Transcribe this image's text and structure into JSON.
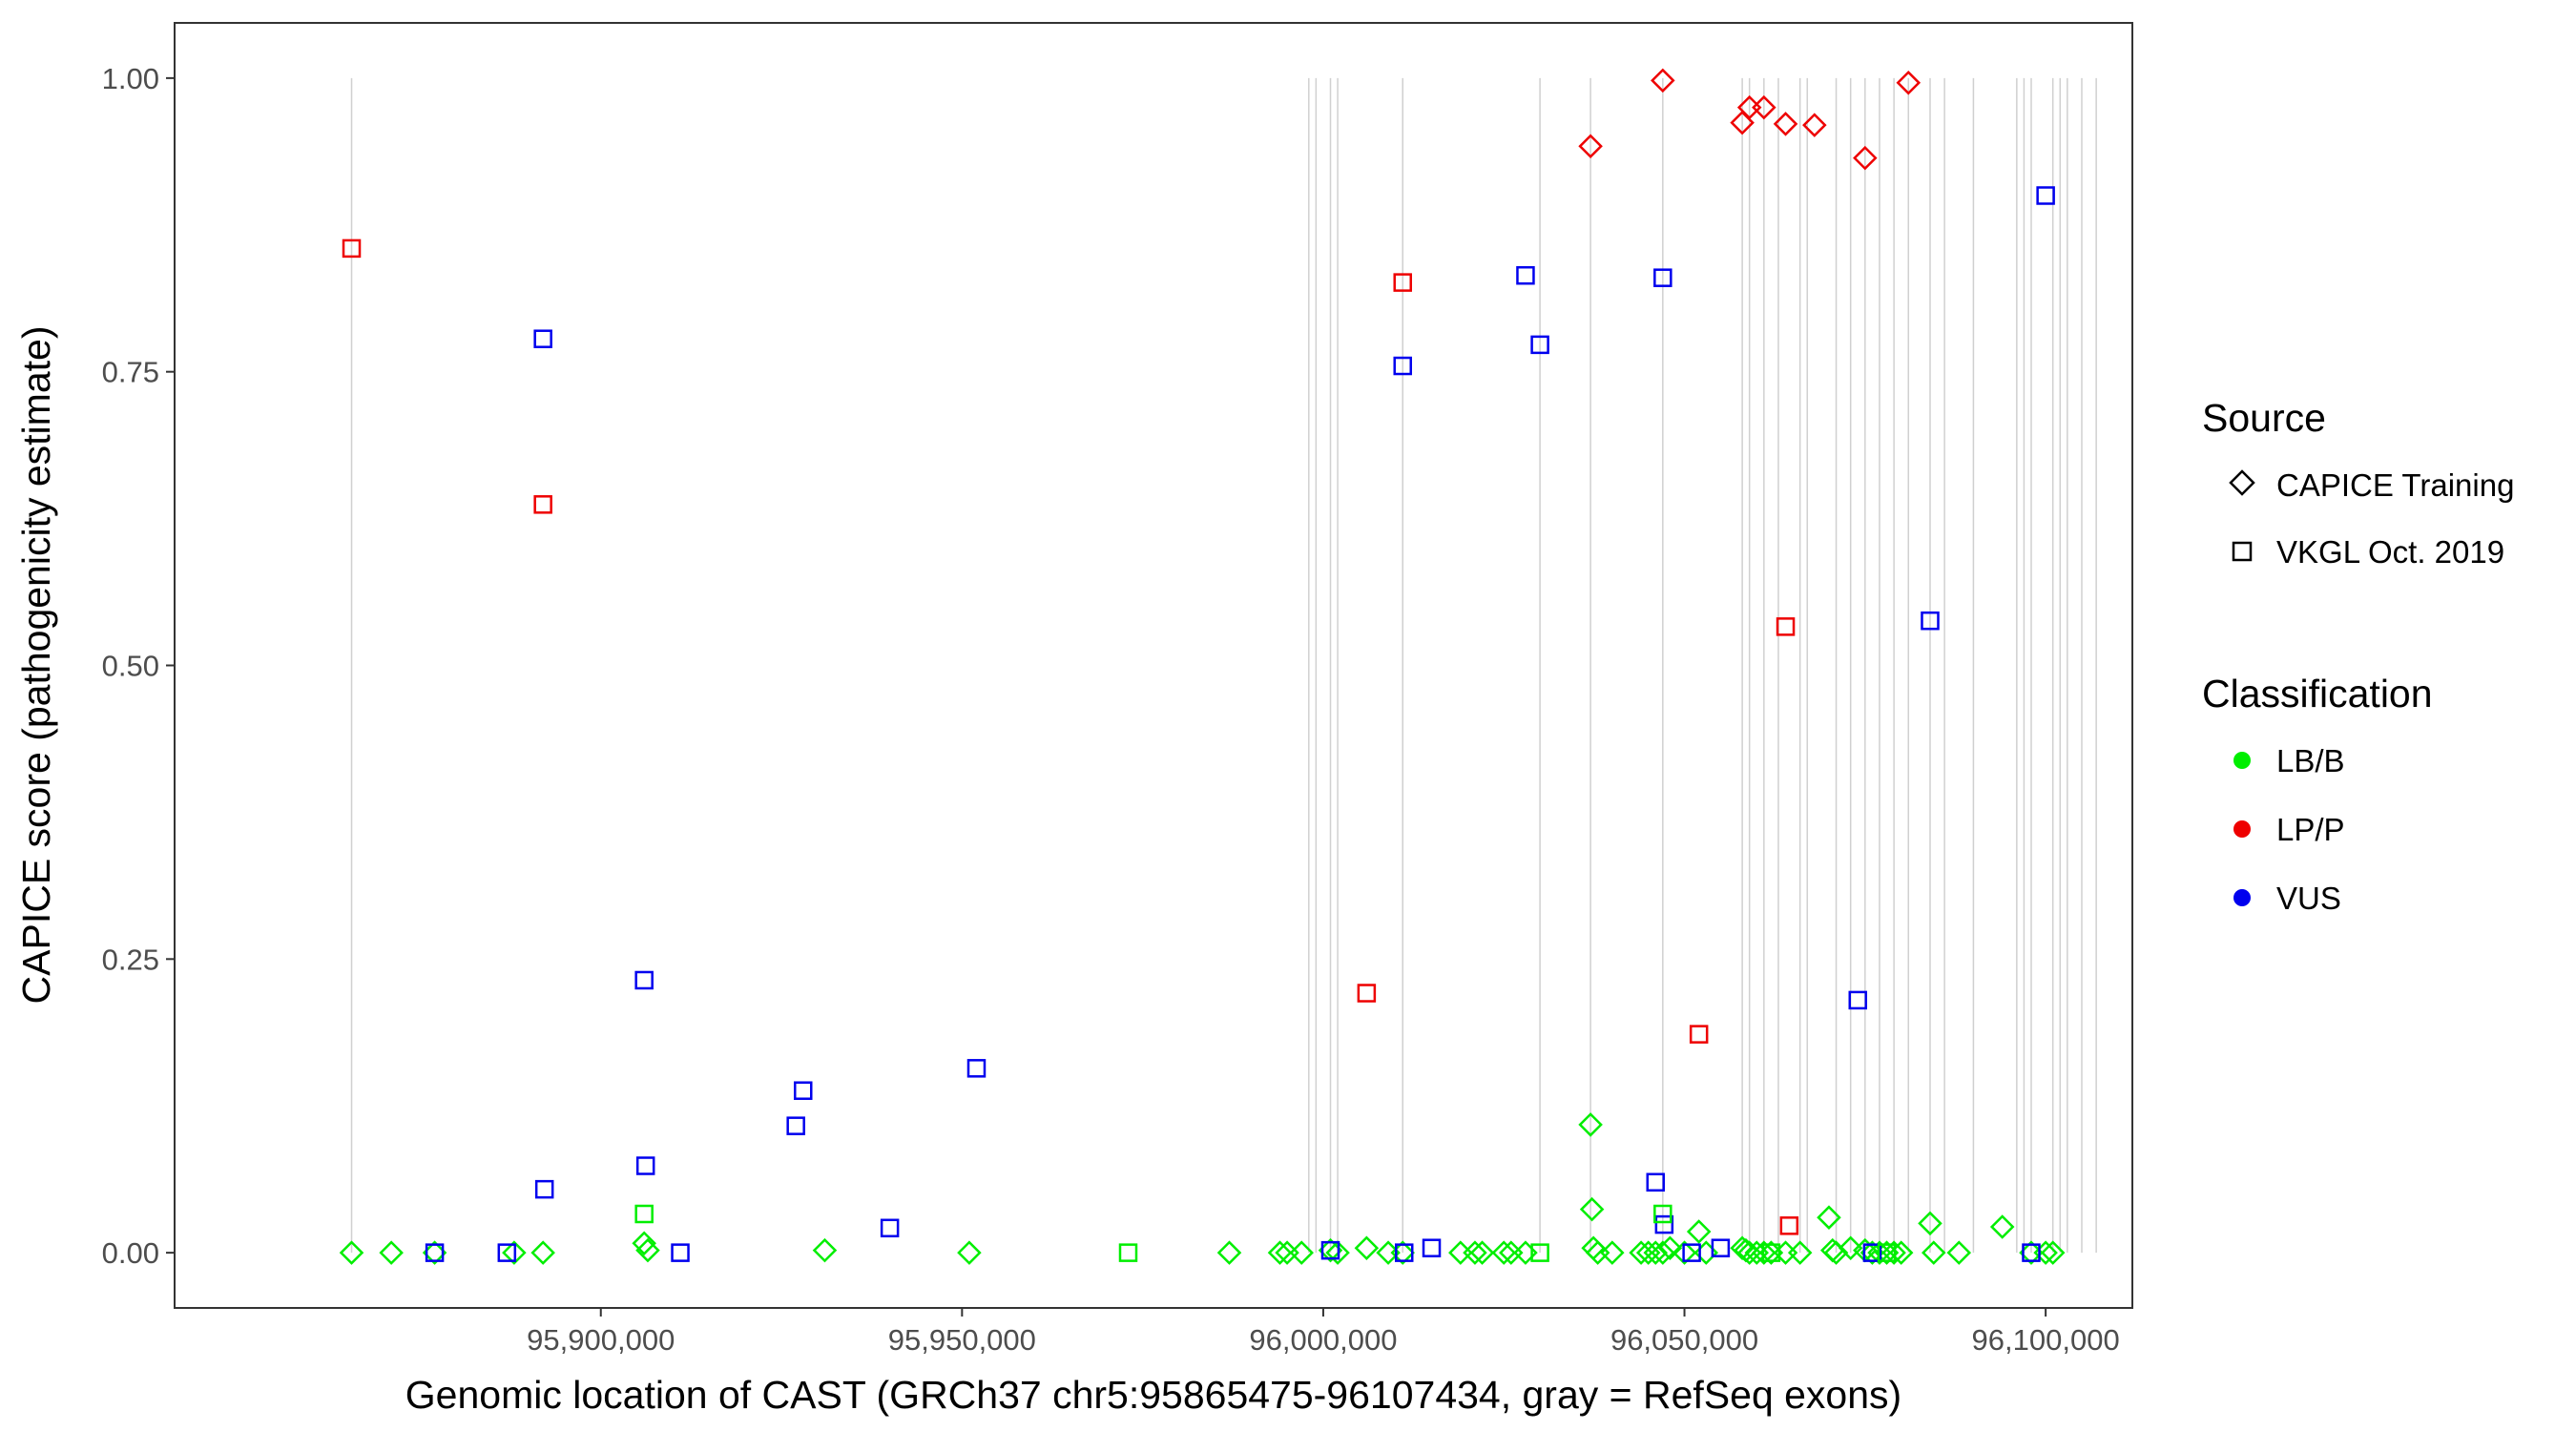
{
  "chart_data": {
    "type": "scatter",
    "xlabel": "Genomic location of CAST (GRCh37 chr5:95865475-96107434, gray = RefSeq exons)",
    "ylabel": "CAPICE score (pathogenicity estimate)",
    "xlim": [
      95841000,
      96112000
    ],
    "ylim": [
      -0.047,
      1.047
    ],
    "x_ticks": [
      {
        "value": 95900000,
        "label": "95,900,000"
      },
      {
        "value": 95950000,
        "label": "95,950,000"
      },
      {
        "value": 96000000,
        "label": "96,000,000"
      },
      {
        "value": 96050000,
        "label": "96,050,000"
      },
      {
        "value": 96100000,
        "label": "96,100,000"
      }
    ],
    "y_ticks": [
      {
        "value": 0.0,
        "label": "0.00"
      },
      {
        "value": 0.25,
        "label": "0.25"
      },
      {
        "value": 0.5,
        "label": "0.50"
      },
      {
        "value": 0.75,
        "label": "0.75"
      },
      {
        "value": 1.0,
        "label": "1.00"
      }
    ],
    "grid": false,
    "exons": [
      95865500,
      95998000,
      95999000,
      96001000,
      96002000,
      96011000,
      96030000,
      96037000,
      96047000,
      96058000,
      96059000,
      96061000,
      96063000,
      96066000,
      96067000,
      96071000,
      96073000,
      96075000,
      96077000,
      96079000,
      96081000,
      96084000,
      96086000,
      96090000,
      96096000,
      96097000,
      96098000,
      96101000,
      96102000,
      96103000,
      96105000,
      96107000
    ],
    "legends": [
      {
        "title": "Source",
        "position": "right",
        "items": [
          {
            "label": "CAPICE Training",
            "shape": "diamond"
          },
          {
            "label": "VKGL Oct. 2019",
            "shape": "square"
          }
        ]
      },
      {
        "title": "Classification",
        "position": "right",
        "items": [
          {
            "label": "LB/B",
            "color": "#00ee00"
          },
          {
            "label": "LP/P",
            "color": "#ee0000"
          },
          {
            "label": "VUS",
            "color": "#0000ee"
          }
        ]
      }
    ],
    "series": [
      {
        "name": "CAPICE Training",
        "shape": "diamond",
        "classification": "LP/P",
        "color": "#ee0000",
        "points": [
          [
            96037000,
            0.942
          ],
          [
            96047000,
            0.998
          ],
          [
            96058000,
            0.962
          ],
          [
            96059000,
            0.975
          ],
          [
            96061000,
            0.975
          ],
          [
            96064000,
            0.961
          ],
          [
            96068000,
            0.96
          ],
          [
            96075000,
            0.932
          ],
          [
            96081000,
            0.996
          ]
        ]
      },
      {
        "name": "CAPICE Training",
        "shape": "diamond",
        "classification": "LB/B",
        "color": "#00ee00",
        "points": [
          [
            95865500,
            0.0
          ],
          [
            95871000,
            0.0
          ],
          [
            95877000,
            0.0
          ],
          [
            95888000,
            0.0
          ],
          [
            95892000,
            0.0
          ],
          [
            95906000,
            0.008
          ],
          [
            95906500,
            0.002
          ],
          [
            95931000,
            0.002
          ],
          [
            95951000,
            0.0
          ],
          [
            95987000,
            0.0
          ],
          [
            95994000,
            0.0
          ],
          [
            95995000,
            0.0
          ],
          [
            95997000,
            0.0
          ],
          [
            96001000,
            0.002
          ],
          [
            96002000,
            0.0
          ],
          [
            96006000,
            0.004
          ],
          [
            96009000,
            0.0
          ],
          [
            96011000,
            0.0
          ],
          [
            96019000,
            0.0
          ],
          [
            96021000,
            0.0
          ],
          [
            96022000,
            0.0
          ],
          [
            96025000,
            0.0
          ],
          [
            96026000,
            0.0
          ],
          [
            96028000,
            0.0
          ],
          [
            96037000,
            0.109
          ],
          [
            96037200,
            0.037
          ],
          [
            96037400,
            0.004
          ],
          [
            96038000,
            0.0
          ],
          [
            96040000,
            0.0
          ],
          [
            96044000,
            0.0
          ],
          [
            96045000,
            0.0
          ],
          [
            96046000,
            0.0
          ],
          [
            96047000,
            0.0
          ],
          [
            96048000,
            0.004
          ],
          [
            96050000,
            0.0
          ],
          [
            96052000,
            0.018
          ],
          [
            96053000,
            0.0
          ],
          [
            96058000,
            0.004
          ],
          [
            96058500,
            0.002
          ],
          [
            96059000,
            0.0
          ],
          [
            96060000,
            0.0
          ],
          [
            96061000,
            0.0
          ],
          [
            96062000,
            0.0
          ],
          [
            96064000,
            0.0
          ],
          [
            96066000,
            0.0
          ],
          [
            96070000,
            0.03
          ],
          [
            96070500,
            0.002
          ],
          [
            96071000,
            0.0
          ],
          [
            96073000,
            0.004
          ],
          [
            96075000,
            0.002
          ],
          [
            96076000,
            0.0
          ],
          [
            96077000,
            0.0
          ],
          [
            96078000,
            0.0
          ],
          [
            96079000,
            0.0
          ],
          [
            96080000,
            0.0
          ],
          [
            96084000,
            0.025
          ],
          [
            96084500,
            0.0
          ],
          [
            96088000,
            0.0
          ],
          [
            96094000,
            0.022
          ],
          [
            96098000,
            0.0
          ],
          [
            96100000,
            0.0
          ],
          [
            96101000,
            0.0
          ]
        ]
      },
      {
        "name": "VKGL Oct. 2019",
        "shape": "square",
        "classification": "LP/P",
        "color": "#ee0000",
        "points": [
          [
            95865500,
            0.855
          ],
          [
            95892000,
            0.637
          ],
          [
            96006000,
            0.221
          ],
          [
            96011000,
            0.826
          ],
          [
            96052000,
            0.186
          ],
          [
            96064000,
            0.533
          ],
          [
            96064500,
            0.023
          ]
        ]
      },
      {
        "name": "VKGL Oct. 2019",
        "shape": "square",
        "classification": "VUS",
        "color": "#0000ee",
        "points": [
          [
            95877000,
            0.0
          ],
          [
            95887000,
            0.0
          ],
          [
            95892000,
            0.778
          ],
          [
            95892200,
            0.054
          ],
          [
            95906000,
            0.232
          ],
          [
            95906200,
            0.074
          ],
          [
            95911000,
            0.0
          ],
          [
            95927000,
            0.108
          ],
          [
            95928000,
            0.138
          ],
          [
            95940000,
            0.021
          ],
          [
            95952000,
            0.157
          ],
          [
            96001000,
            0.002
          ],
          [
            96011000,
            0.755
          ],
          [
            96011200,
            0.0
          ],
          [
            96015000,
            0.004
          ],
          [
            96028000,
            0.832
          ],
          [
            96030000,
            0.773
          ],
          [
            96046000,
            0.06
          ],
          [
            96047000,
            0.83
          ],
          [
            96047200,
            0.024
          ],
          [
            96051000,
            0.0
          ],
          [
            96055000,
            0.004
          ],
          [
            96074000,
            0.215
          ],
          [
            96076000,
            0.0
          ],
          [
            96084000,
            0.538
          ],
          [
            96098000,
            0.0
          ],
          [
            96100000,
            0.9
          ]
        ]
      },
      {
        "name": "VKGL Oct. 2019",
        "shape": "square",
        "classification": "LB/B",
        "color": "#00ee00",
        "points": [
          [
            95906000,
            0.033
          ],
          [
            95973000,
            0.0
          ],
          [
            96030000,
            0.0
          ],
          [
            96047000,
            0.033
          ],
          [
            96062000,
            0.0
          ],
          [
            96078000,
            0.0
          ]
        ]
      }
    ]
  }
}
